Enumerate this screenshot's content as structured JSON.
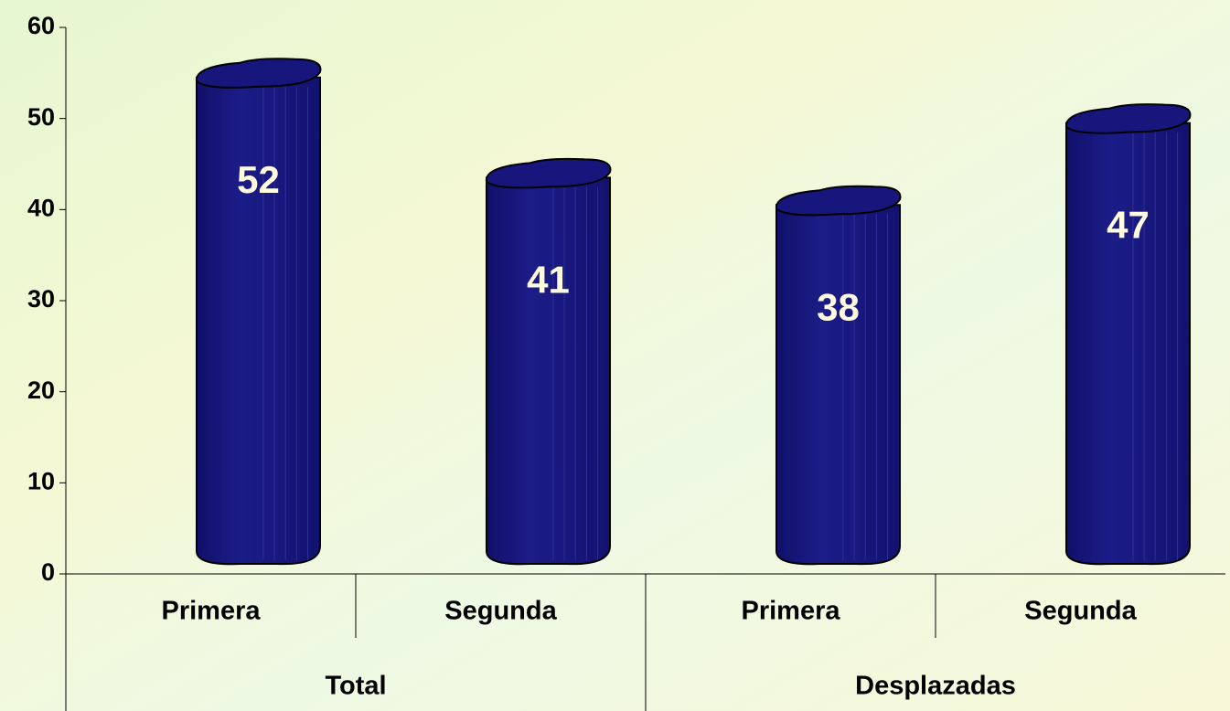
{
  "chart_data": {
    "type": "bar",
    "categories": [
      "Primera",
      "Segunda",
      "Primera",
      "Segunda"
    ],
    "groups": [
      "Total",
      "Desplazadas"
    ],
    "values": [
      52,
      41,
      38,
      47
    ],
    "color": "#14147a",
    "ylim": [
      0,
      60
    ],
    "yticks": [
      0,
      10,
      20,
      30,
      40,
      50,
      60
    ]
  }
}
